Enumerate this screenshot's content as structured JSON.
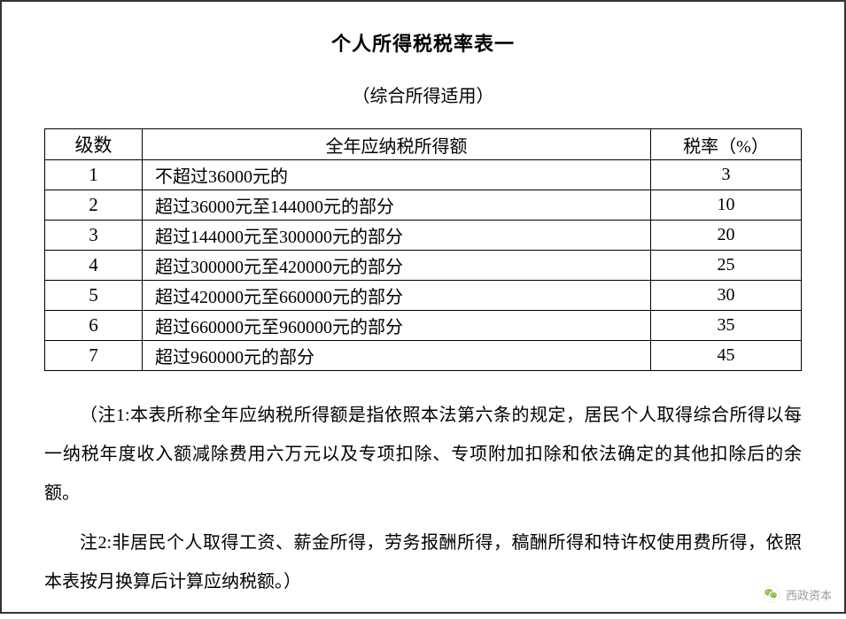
{
  "title": "个人所得税税率表一",
  "subtitle": "（综合所得适用）",
  "table": {
    "headers": {
      "level": "级数",
      "income": "全年应纳税所得额",
      "rate": "税率（%）"
    },
    "rows": [
      {
        "level": "1",
        "income": "不超过36000元的",
        "rate": "3"
      },
      {
        "level": "2",
        "income": "超过36000元至144000元的部分",
        "rate": "10"
      },
      {
        "level": "3",
        "income": "超过144000元至300000元的部分",
        "rate": "20"
      },
      {
        "level": "4",
        "income": "超过300000元至420000元的部分",
        "rate": "25"
      },
      {
        "level": "5",
        "income": "超过420000元至660000元的部分",
        "rate": "30"
      },
      {
        "level": "6",
        "income": "超过660000元至960000元的部分",
        "rate": "35"
      },
      {
        "level": "7",
        "income": "超过960000元的部分",
        "rate": "45"
      }
    ]
  },
  "notes": {
    "note1": "（注1:本表所称全年应纳税所得额是指依照本法第六条的规定，居民个人取得综合所得以每一纳税年度收入额减除费用六万元以及专项扣除、专项附加扣除和依法确定的其他扣除后的余额。",
    "note2": "注2:非居民个人取得工资、薪金所得，劳务报酬所得，稿酬所得和特许权使用费所得，依照本表按月换算后计算应纳税额。）"
  },
  "watermark": {
    "text": "西政资本"
  },
  "colors": {
    "border": "#000000",
    "text": "#000000",
    "background": "#ffffff",
    "watermark_text": "#8a8a8a",
    "wechat_green": "#7bb32e"
  }
}
